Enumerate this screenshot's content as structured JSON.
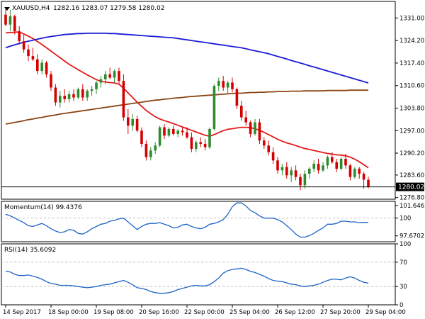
{
  "header": {
    "symbol_label": "XAUUSD,H4",
    "ohlc_label": "1282.16 1283.07 1279.58 1280.02"
  },
  "colors": {
    "background": "#ffffff",
    "grid": "#c0c0c0",
    "axis_text": "#000000",
    "candle_up": "#2e8b2e",
    "candle_down": "#d40000",
    "sma_fast": "#e41a1c",
    "sma_slow": "#1c1cd6",
    "sma_long": "#8b4513",
    "indicator_line": "#1e64c8",
    "price_marker_bg": "#000000",
    "price_marker_text": "#ffffff"
  },
  "chart_data": [
    {
      "type": "candlestick",
      "title": "XAUUSD,H4",
      "subtitle": "1282.16 1283.07 1279.58 1280.02",
      "ylim": [
        1276.3,
        1336.0
      ],
      "y_ticks": [
        "1331.00",
        "1324.20",
        "1317.40",
        "1310.60",
        "1303.80",
        "1297.00",
        "1290.20",
        "1283.60",
        "1276.80"
      ],
      "y_tick_values": [
        1331.0,
        1324.2,
        1317.4,
        1310.6,
        1303.8,
        1297.0,
        1290.2,
        1283.6,
        1276.8
      ],
      "x_ticks": [
        "14 Sep 2017",
        "18 Sep 00:00",
        "19 Sep 08:00",
        "20 Sep 16:00",
        "22 Sep 00:00",
        "25 Sep 04:00",
        "26 Sep 12:00",
        "27 Sep 20:00",
        "29 Sep 04:00"
      ],
      "x_tick_bar_index": [
        0,
        10,
        20,
        30,
        40,
        50,
        60,
        70,
        80
      ],
      "last_price": 1280.02,
      "last_price_label": "1280.02",
      "ohlc": [
        [
          1332.0,
          1334.0,
          1328.5,
          1329.0
        ],
        [
          1329.0,
          1333.5,
          1327.0,
          1331.5
        ],
        [
          1331.5,
          1332.0,
          1326.0,
          1327.0
        ],
        [
          1327.0,
          1328.5,
          1323.0,
          1324.0
        ],
        [
          1324.0,
          1326.0,
          1320.5,
          1321.5
        ],
        [
          1321.5,
          1323.0,
          1318.0,
          1319.5
        ],
        [
          1319.5,
          1322.0,
          1318.0,
          1318.5
        ],
        [
          1318.5,
          1320.0,
          1314.0,
          1315.0
        ],
        [
          1315.0,
          1318.5,
          1314.0,
          1317.5
        ],
        [
          1317.5,
          1318.0,
          1313.0,
          1314.0
        ],
        [
          1314.0,
          1315.0,
          1309.0,
          1310.0
        ],
        [
          1310.0,
          1311.0,
          1304.5,
          1305.5
        ],
        [
          1305.5,
          1309.0,
          1304.0,
          1307.5
        ],
        [
          1307.5,
          1309.5,
          1305.5,
          1306.5
        ],
        [
          1306.5,
          1309.0,
          1305.5,
          1308.0
        ],
        [
          1308.0,
          1309.5,
          1306.0,
          1307.0
        ],
        [
          1307.0,
          1310.0,
          1306.5,
          1309.5
        ],
        [
          1309.5,
          1311.0,
          1306.0,
          1307.0
        ],
        [
          1307.0,
          1309.5,
          1306.0,
          1309.0
        ],
        [
          1309.0,
          1310.5,
          1307.5,
          1309.5
        ],
        [
          1309.5,
          1312.0,
          1308.0,
          1311.5
        ],
        [
          1311.5,
          1313.5,
          1310.0,
          1312.5
        ],
        [
          1312.5,
          1315.0,
          1311.0,
          1314.0
        ],
        [
          1314.0,
          1316.0,
          1312.5,
          1313.0
        ],
        [
          1313.0,
          1315.5,
          1311.5,
          1315.0
        ],
        [
          1315.0,
          1316.0,
          1311.0,
          1312.0
        ],
        [
          1312.0,
          1314.0,
          1300.0,
          1301.0
        ],
        [
          1301.0,
          1303.5,
          1296.0,
          1298.5
        ],
        [
          1298.5,
          1302.0,
          1297.0,
          1300.5
        ],
        [
          1300.5,
          1301.5,
          1296.5,
          1297.0
        ],
        [
          1297.0,
          1298.0,
          1292.0,
          1293.0
        ],
        [
          1293.0,
          1294.0,
          1288.0,
          1289.0
        ],
        [
          1289.0,
          1292.0,
          1288.0,
          1291.0
        ],
        [
          1291.0,
          1293.5,
          1290.0,
          1292.5
        ],
        [
          1292.5,
          1298.5,
          1292.0,
          1298.0
        ],
        [
          1298.0,
          1299.0,
          1294.5,
          1295.5
        ],
        [
          1295.5,
          1298.0,
          1295.0,
          1297.5
        ],
        [
          1297.5,
          1298.5,
          1295.5,
          1296.0
        ],
        [
          1296.0,
          1297.5,
          1295.0,
          1297.0
        ],
        [
          1297.0,
          1298.0,
          1295.5,
          1296.5
        ],
        [
          1296.5,
          1298.0,
          1294.5,
          1295.0
        ],
        [
          1295.0,
          1296.5,
          1290.5,
          1291.5
        ],
        [
          1291.5,
          1294.0,
          1290.5,
          1293.5
        ],
        [
          1293.5,
          1295.0,
          1292.0,
          1293.0
        ],
        [
          1293.0,
          1294.5,
          1291.0,
          1292.0
        ],
        [
          1292.0,
          1298.0,
          1291.5,
          1297.5
        ],
        [
          1297.5,
          1311.0,
          1297.0,
          1310.5
        ],
        [
          1310.5,
          1313.0,
          1309.0,
          1312.0
        ],
        [
          1312.0,
          1313.5,
          1309.0,
          1310.0
        ],
        [
          1310.0,
          1312.0,
          1308.0,
          1311.5
        ],
        [
          1311.5,
          1313.0,
          1308.5,
          1309.5
        ],
        [
          1309.5,
          1310.0,
          1303.5,
          1304.5
        ],
        [
          1304.5,
          1306.0,
          1300.0,
          1301.0
        ],
        [
          1301.0,
          1303.0,
          1298.5,
          1299.5
        ],
        [
          1299.5,
          1300.0,
          1295.0,
          1296.0
        ],
        [
          1296.0,
          1300.5,
          1295.5,
          1299.5
        ],
        [
          1299.5,
          1300.5,
          1293.0,
          1294.0
        ],
        [
          1294.0,
          1295.0,
          1291.5,
          1292.5
        ],
        [
          1292.5,
          1294.0,
          1289.5,
          1290.5
        ],
        [
          1290.5,
          1292.0,
          1287.0,
          1288.0
        ],
        [
          1288.0,
          1289.0,
          1284.0,
          1285.0
        ],
        [
          1285.0,
          1287.0,
          1283.5,
          1286.0
        ],
        [
          1286.0,
          1287.5,
          1282.5,
          1283.5
        ],
        [
          1283.5,
          1286.0,
          1281.5,
          1285.0
        ],
        [
          1285.0,
          1286.5,
          1282.0,
          1283.0
        ],
        [
          1283.0,
          1284.0,
          1279.0,
          1280.5
        ],
        [
          1280.5,
          1285.0,
          1279.5,
          1284.0
        ],
        [
          1284.0,
          1286.0,
          1282.5,
          1285.5
        ],
        [
          1285.5,
          1288.0,
          1284.5,
          1287.0
        ],
        [
          1287.0,
          1288.5,
          1284.0,
          1285.0
        ],
        [
          1285.0,
          1287.5,
          1284.5,
          1286.5
        ],
        [
          1286.5,
          1289.5,
          1285.5,
          1289.0
        ],
        [
          1289.0,
          1290.5,
          1287.0,
          1287.5
        ],
        [
          1287.5,
          1288.5,
          1284.5,
          1285.5
        ],
        [
          1285.5,
          1289.0,
          1285.0,
          1288.5
        ],
        [
          1288.5,
          1290.0,
          1285.5,
          1286.5
        ],
        [
          1286.5,
          1287.0,
          1282.0,
          1283.0
        ],
        [
          1283.0,
          1286.0,
          1282.5,
          1285.5
        ],
        [
          1285.5,
          1286.0,
          1282.5,
          1284.0
        ],
        [
          1284.0,
          1284.5,
          1279.5,
          1282.2
        ],
        [
          1282.16,
          1283.07,
          1279.58,
          1280.02
        ]
      ],
      "series": [
        {
          "name": "",
          "color": "#e41a1c",
          "values": [
            1326.5,
            1326.6,
            1326.7,
            1326.8,
            1326.2,
            1325.5,
            1324.8,
            1323.9,
            1323.0,
            1322.0,
            1321.0,
            1320.0,
            1319.0,
            1318.0,
            1317.0,
            1316.2,
            1315.4,
            1314.6,
            1313.8,
            1313.1,
            1312.4,
            1311.9,
            1311.7,
            1311.5,
            1311.4,
            1311.0,
            1309.8,
            1308.4,
            1307.0,
            1305.6,
            1304.3,
            1303.1,
            1302.1,
            1301.2,
            1300.5,
            1300.0,
            1299.6,
            1299.1,
            1298.6,
            1298.1,
            1297.6,
            1297.1,
            1296.6,
            1296.1,
            1295.6,
            1295.3,
            1295.8,
            1296.4,
            1297.0,
            1297.4,
            1297.6,
            1297.8,
            1298.0,
            1298.0,
            1297.9,
            1297.6,
            1297.1,
            1296.5,
            1295.8,
            1295.1,
            1294.4,
            1293.8,
            1293.3,
            1292.9,
            1292.5,
            1292.0,
            1291.6,
            1291.3,
            1291.0,
            1290.7,
            1290.4,
            1290.1,
            1289.9,
            1289.7,
            1289.6,
            1289.4,
            1289.0,
            1288.4,
            1287.6,
            1286.7,
            1285.8
          ]
        },
        {
          "name": "",
          "color": "#1c1cd6",
          "values": [
            1322.0,
            1322.5,
            1322.9,
            1323.3,
            1323.7,
            1324.0,
            1324.3,
            1324.6,
            1324.9,
            1325.2,
            1325.4,
            1325.6,
            1325.8,
            1326.0,
            1326.1,
            1326.2,
            1326.3,
            1326.3,
            1326.4,
            1326.4,
            1326.4,
            1326.4,
            1326.4,
            1326.3,
            1326.3,
            1326.2,
            1326.1,
            1326.0,
            1325.9,
            1325.8,
            1325.7,
            1325.6,
            1325.5,
            1325.4,
            1325.3,
            1325.2,
            1325.1,
            1325.0,
            1324.8,
            1324.6,
            1324.4,
            1324.2,
            1324.0,
            1323.8,
            1323.6,
            1323.4,
            1323.2,
            1323.0,
            1322.8,
            1322.6,
            1322.4,
            1322.2,
            1322.0,
            1321.7,
            1321.4,
            1321.1,
            1320.8,
            1320.5,
            1320.2,
            1319.8,
            1319.4,
            1319.0,
            1318.6,
            1318.2,
            1317.8,
            1317.4,
            1317.0,
            1316.6,
            1316.2,
            1315.8,
            1315.4,
            1315.0,
            1314.6,
            1314.2,
            1313.8,
            1313.4,
            1313.0,
            1312.6,
            1312.2,
            1311.8,
            1311.4
          ]
        },
        {
          "name": "",
          "color": "#8b4513",
          "values": [
            1299.0,
            1299.2,
            1299.5,
            1299.7,
            1300.0,
            1300.3,
            1300.5,
            1300.8,
            1301.0,
            1301.3,
            1301.5,
            1301.7,
            1302.0,
            1302.2,
            1302.4,
            1302.6,
            1302.8,
            1303.0,
            1303.2,
            1303.4,
            1303.6,
            1303.8,
            1304.0,
            1304.2,
            1304.4,
            1304.6,
            1304.8,
            1305.0,
            1305.2,
            1305.4,
            1305.6,
            1305.8,
            1306.0,
            1306.2,
            1306.3,
            1306.5,
            1306.6,
            1306.8,
            1306.9,
            1307.0,
            1307.2,
            1307.3,
            1307.4,
            1307.5,
            1307.6,
            1307.7,
            1307.8,
            1307.9,
            1308.0,
            1308.1,
            1308.2,
            1308.3,
            1308.3,
            1308.4,
            1308.5,
            1308.5,
            1308.6,
            1308.6,
            1308.7,
            1308.7,
            1308.8,
            1308.8,
            1308.8,
            1308.9,
            1308.9,
            1308.9,
            1309.0,
            1309.0,
            1309.0,
            1309.0,
            1309.0,
            1309.1,
            1309.1,
            1309.1,
            1309.1,
            1309.1,
            1309.2,
            1309.2,
            1309.2,
            1309.2,
            1309.2
          ]
        }
      ]
    },
    {
      "type": "line",
      "title": "Momentum(14) 99.4376",
      "ylim": [
        96.9,
        102.2
      ],
      "y_ticks": [
        "101.6461",
        "100",
        "97.6702"
      ],
      "y_tick_values": [
        101.6461,
        100.0,
        97.6702
      ],
      "reference_level": 100.0,
      "last_value": 99.4376,
      "series": [
        {
          "name": "Momentum(14)",
          "values": [
            100.5,
            100.3,
            100.0,
            99.7,
            99.4,
            99.0,
            98.9,
            99.1,
            99.3,
            99.0,
            98.6,
            98.3,
            98.1,
            98.2,
            98.5,
            98.4,
            98.0,
            97.9,
            98.2,
            98.6,
            98.9,
            99.2,
            99.3,
            99.6,
            99.7,
            99.9,
            100.0,
            99.5,
            99.0,
            98.5,
            98.9,
            99.2,
            99.3,
            99.3,
            99.4,
            99.2,
            99.0,
            98.7,
            98.8,
            99.1,
            99.2,
            98.9,
            98.7,
            98.6,
            98.8,
            99.2,
            99.3,
            99.5,
            99.8,
            100.5,
            101.5,
            102.0,
            102.0,
            101.6,
            101.0,
            100.7,
            100.3,
            100.0,
            100.0,
            100.0,
            99.8,
            99.5,
            99.0,
            98.5,
            97.9,
            97.5,
            97.5,
            97.7,
            98.0,
            98.4,
            98.7,
            99.2,
            99.2,
            99.3,
            99.6,
            99.6,
            99.5,
            99.5,
            99.4,
            99.44,
            99.4376
          ]
        }
      ]
    },
    {
      "type": "line",
      "title": "RSI(14) 35.6092",
      "ylim": [
        0,
        100
      ],
      "y_ticks": [
        "100",
        "70",
        "30",
        "0"
      ],
      "y_tick_values": [
        100,
        70,
        30,
        0
      ],
      "levels": [
        70,
        30
      ],
      "last_value": 35.6092,
      "series": [
        {
          "name": "RSI(14)",
          "values": [
            55,
            54,
            50,
            48,
            48,
            49,
            47,
            45,
            42,
            38,
            35,
            34,
            32,
            32,
            32,
            31,
            30,
            29,
            28,
            29,
            30,
            32,
            33,
            34,
            36,
            38,
            40,
            37,
            33,
            28,
            27,
            25,
            22,
            20,
            19,
            19,
            20,
            22,
            25,
            27,
            29,
            31,
            32,
            31,
            31,
            33,
            38,
            44,
            52,
            56,
            58,
            59,
            60,
            58,
            55,
            53,
            50,
            47,
            43,
            40,
            39,
            38,
            36,
            34,
            33,
            31,
            30,
            31,
            32,
            34,
            37,
            40,
            42,
            42,
            41,
            44,
            46,
            44,
            40,
            37,
            35.6
          ]
        }
      ]
    }
  ]
}
